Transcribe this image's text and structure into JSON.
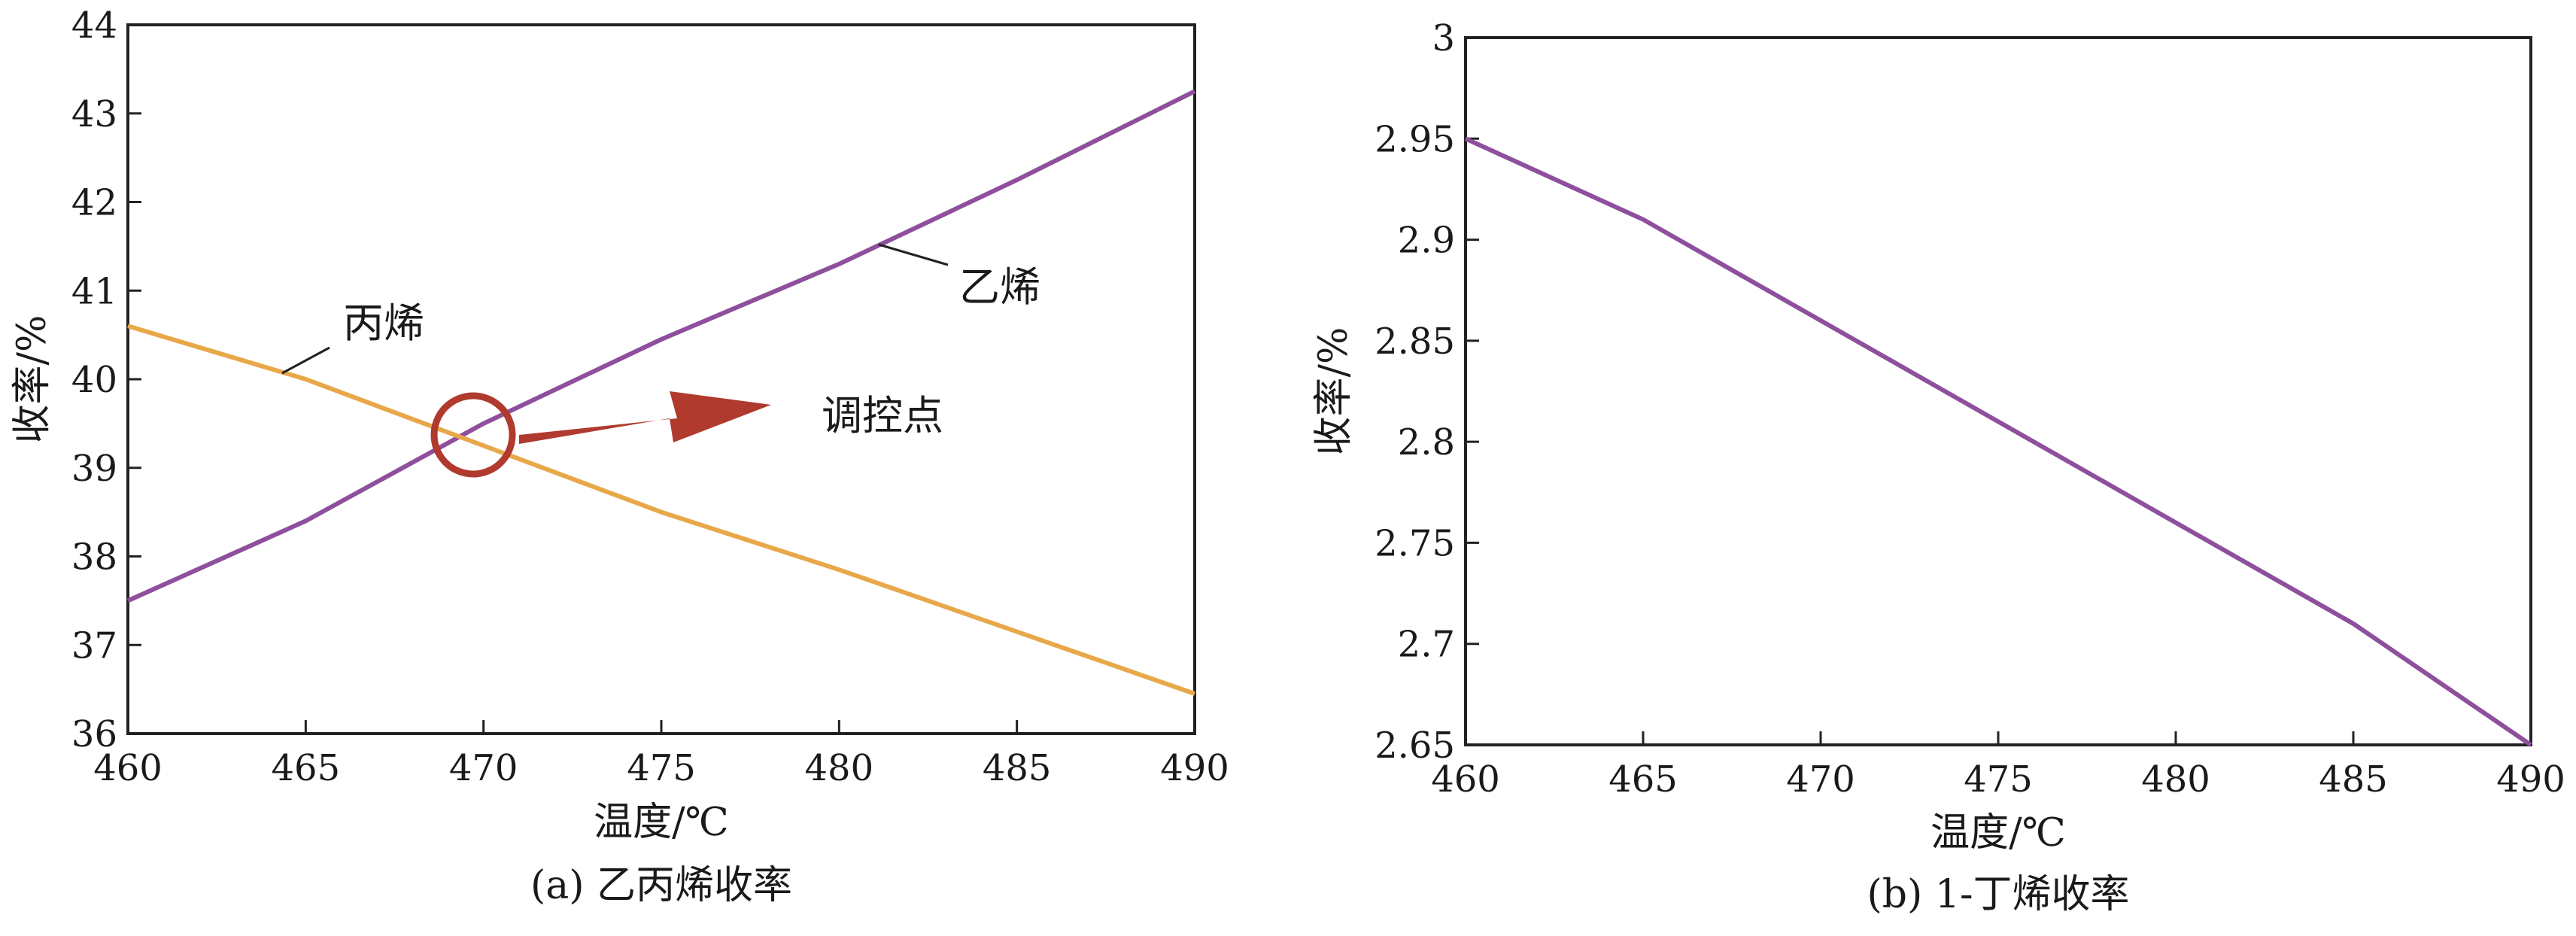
{
  "chart_data": [
    {
      "type": "line",
      "caption": "(a) 乙丙烯收率",
      "xlabel": "温度/℃",
      "ylabel": "收率/%",
      "xlim": [
        460,
        490
      ],
      "ylim": [
        36,
        44
      ],
      "xticks": [
        460,
        465,
        470,
        475,
        480,
        485,
        490
      ],
      "yticks": [
        36,
        37,
        38,
        39,
        40,
        41,
        42,
        43,
        44
      ],
      "grid": false,
      "series": [
        {
          "name": "乙烯",
          "color": "#8e4f9c",
          "x": [
            460,
            465,
            470,
            475,
            480,
            485,
            490
          ],
          "y": [
            37.5,
            38.4,
            39.5,
            40.45,
            41.3,
            42.25,
            43.25
          ]
        },
        {
          "name": "丙烯",
          "color": "#e8a84a",
          "x": [
            460,
            465,
            470,
            475,
            480,
            485,
            490
          ],
          "y": [
            40.6,
            40.0,
            39.25,
            38.5,
            37.85,
            37.15,
            36.45
          ]
        }
      ],
      "annotation": {
        "text": "调控点",
        "marker_color": "#b03a2e",
        "at": [
          469.7,
          39.35
        ]
      }
    },
    {
      "type": "line",
      "caption": "(b) 1-丁烯收率",
      "xlabel": "温度/℃",
      "ylabel": "收率/%",
      "xlim": [
        460,
        490
      ],
      "ylim": [
        2.65,
        3.0
      ],
      "xticks": [
        460,
        465,
        470,
        475,
        480,
        485,
        490
      ],
      "yticks": [
        "2.65",
        "2.7",
        "2.75",
        "2.8",
        "2.85",
        "2.9",
        "2.95",
        "3"
      ],
      "grid": false,
      "series": [
        {
          "color": "#8e4f9c",
          "x": [
            460,
            465,
            470,
            475,
            480,
            485,
            490
          ],
          "y": [
            2.95,
            2.91,
            2.86,
            2.81,
            2.76,
            2.71,
            2.65
          ]
        }
      ]
    }
  ]
}
